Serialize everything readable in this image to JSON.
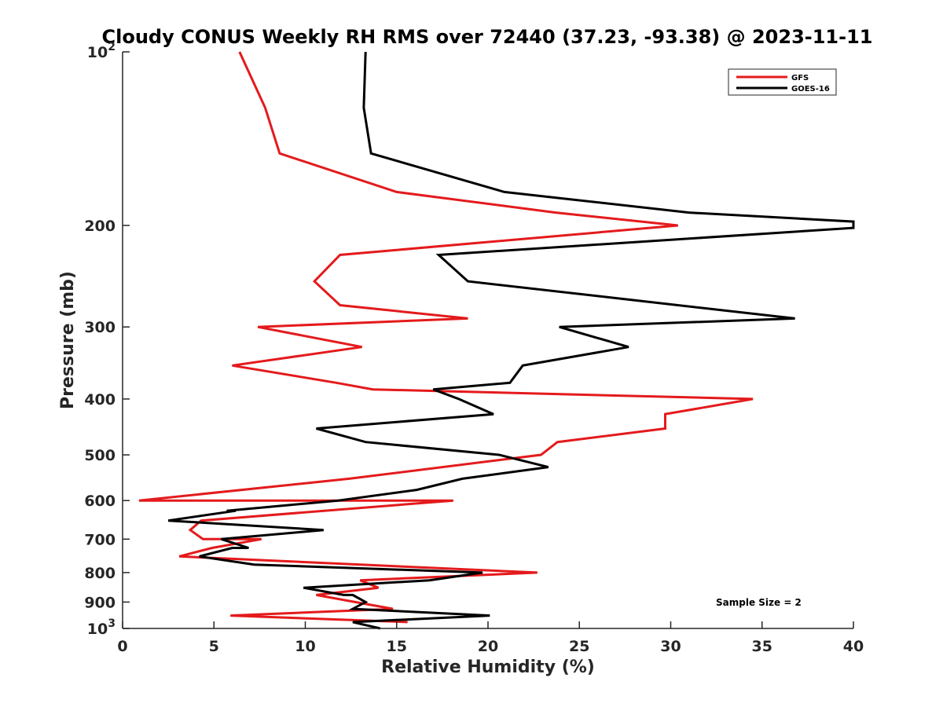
{
  "chart_data": {
    "type": "line",
    "title": "Cloudy CONUS Weekly RH RMS over 72440 (37.23, -93.38) @ 2023-11-11",
    "xlabel": "Relative Humidity (%)",
    "ylabel": "Pressure (mb)",
    "xlim": [
      0,
      40
    ],
    "ylim": [
      100,
      1000
    ],
    "yscale": "log",
    "y_reversed": true,
    "grid": false,
    "legend_position": "top-right",
    "x_ticks": [
      "0",
      "5",
      "10",
      "15",
      "20",
      "25",
      "30",
      "35",
      "40"
    ],
    "y_ticks": [
      {
        "value": 100,
        "base": "10",
        "exp": "2"
      },
      {
        "value": 200,
        "label": "200"
      },
      {
        "value": 300,
        "label": "300"
      },
      {
        "value": 400,
        "label": "400"
      },
      {
        "value": 500,
        "label": "500"
      },
      {
        "value": 600,
        "label": "600"
      },
      {
        "value": 700,
        "label": "700"
      },
      {
        "value": 800,
        "label": "800"
      },
      {
        "value": 900,
        "label": "900"
      },
      {
        "value": 1000,
        "base": "10",
        "exp": "3"
      }
    ],
    "annotation": "Sample Size = 2",
    "series": [
      {
        "name": "GFS",
        "color": "#e41a1c",
        "points": [
          [
            6.4,
            100
          ],
          [
            7.8,
            125
          ],
          [
            8.6,
            150
          ],
          [
            15.0,
            175
          ],
          [
            23.7,
            190
          ],
          [
            30.4,
            200
          ],
          [
            11.9,
            225
          ],
          [
            10.5,
            250
          ],
          [
            11.9,
            275
          ],
          [
            18.9,
            290
          ],
          [
            7.4,
            300
          ],
          [
            13.1,
            325
          ],
          [
            6.0,
            350
          ],
          [
            11.7,
            375
          ],
          [
            13.7,
            385
          ],
          [
            34.5,
            400
          ],
          [
            29.7,
            425
          ],
          [
            29.7,
            450
          ],
          [
            23.8,
            475
          ],
          [
            22.9,
            500
          ],
          [
            12.4,
            550
          ],
          [
            0.9,
            600
          ],
          [
            18.1,
            600
          ],
          [
            4.3,
            650
          ],
          [
            3.7,
            675
          ],
          [
            4.4,
            700
          ],
          [
            7.6,
            700
          ],
          [
            4.9,
            725
          ],
          [
            3.1,
            750
          ],
          [
            22.7,
            800
          ],
          [
            13.0,
            825
          ],
          [
            14.0,
            850
          ],
          [
            10.6,
            875
          ],
          [
            14.8,
            925
          ],
          [
            5.9,
            950
          ],
          [
            15.6,
            975
          ]
        ]
      },
      {
        "name": "GOES-16",
        "color": "#000000",
        "points": [
          [
            13.3,
            100
          ],
          [
            13.2,
            125
          ],
          [
            13.6,
            150
          ],
          [
            20.9,
            175
          ],
          [
            31.0,
            190
          ],
          [
            40.0,
            197
          ],
          [
            40.0,
            202
          ],
          [
            17.3,
            225
          ],
          [
            18.9,
            250
          ],
          [
            36.8,
            290
          ],
          [
            23.9,
            300
          ],
          [
            27.7,
            325
          ],
          [
            21.9,
            350
          ],
          [
            21.2,
            375
          ],
          [
            17.0,
            385
          ],
          [
            18.4,
            400
          ],
          [
            20.3,
            425
          ],
          [
            10.6,
            450
          ],
          [
            13.3,
            475
          ],
          [
            20.6,
            500
          ],
          [
            23.3,
            525
          ],
          [
            18.6,
            550
          ],
          [
            16.1,
            575
          ],
          [
            11.8,
            600
          ],
          [
            5.7,
            625
          ],
          [
            6.2,
            625
          ],
          [
            2.5,
            650
          ],
          [
            11.0,
            675
          ],
          [
            5.4,
            700
          ],
          [
            6.9,
            725
          ],
          [
            6.0,
            725
          ],
          [
            4.2,
            750
          ],
          [
            7.2,
            775
          ],
          [
            19.7,
            800
          ],
          [
            16.8,
            825
          ],
          [
            9.9,
            850
          ],
          [
            12.1,
            875
          ],
          [
            12.6,
            875
          ],
          [
            13.3,
            900
          ],
          [
            12.6,
            925
          ],
          [
            20.1,
            950
          ],
          [
            12.6,
            975
          ],
          [
            14.1,
            1000
          ]
        ]
      }
    ]
  }
}
